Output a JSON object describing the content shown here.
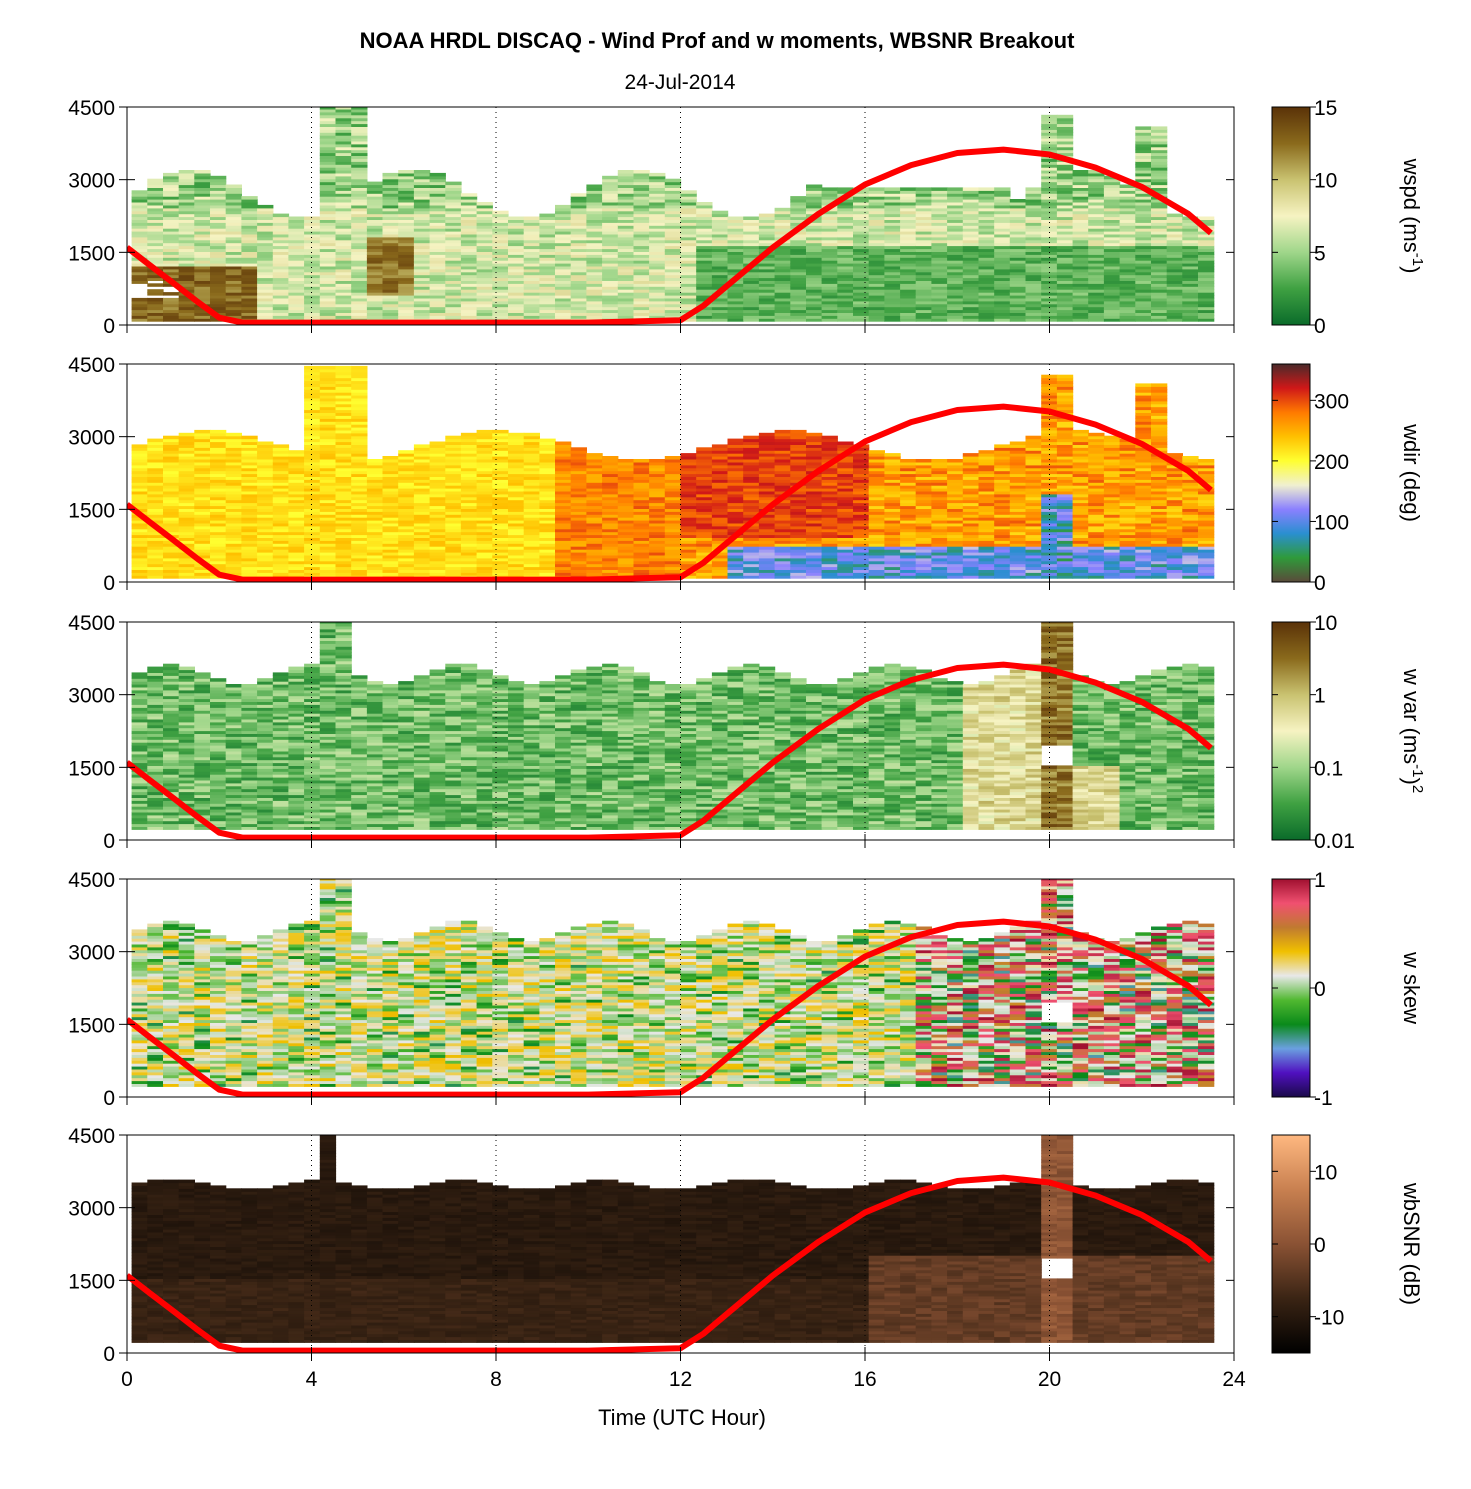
{
  "title": "NOAA HRDL DISCAQ - Wind Prof and w moments, WBSNR Breakout",
  "subtitle": "24-Jul-2014",
  "colors": {
    "overlay_line": "#ff0000",
    "gridline": "#000000"
  },
  "chart_data": {
    "type": "heatmap",
    "xlabel": "Time (UTC Hour)",
    "xlim": [
      0,
      24
    ],
    "xticks": [
      "0",
      "4",
      "8",
      "12",
      "16",
      "20",
      "24"
    ],
    "ylim": [
      0,
      4500
    ],
    "yticks": [
      "0",
      "1500",
      "3000",
      "4500"
    ],
    "overlay_line": {
      "color": "#ff0000",
      "x": [
        0,
        0.5,
        1,
        1.5,
        2,
        2.5,
        3,
        4,
        6,
        8,
        10,
        12,
        12.5,
        13,
        14,
        15,
        16,
        17,
        18,
        19,
        20,
        21,
        22,
        23,
        23.5
      ],
      "y": [
        1600,
        1230,
        870,
        500,
        150,
        50,
        50,
        50,
        50,
        50,
        50,
        100,
        400,
        800,
        1600,
        2300,
        2900,
        3300,
        3550,
        3620,
        3520,
        3250,
        2850,
        2300,
        1900
      ]
    },
    "panels": [
      {
        "id": "wspd",
        "colorbar_label": "wspd (ms",
        "colorbar_label_sup": "-1",
        "colorbar_label_tail": ")",
        "colorbar_ticks": [
          "0",
          "5",
          "10",
          "15"
        ],
        "colorbar_scale": "linear",
        "clim": [
          0,
          15
        ],
        "colormap": [
          "#0a6b2a",
          "#3fa142",
          "#9fd68a",
          "#f6f3c2",
          "#c9c270",
          "#8a6a1c",
          "#5a3208"
        ]
      },
      {
        "id": "wdir",
        "colorbar_label": "wdir (deg)",
        "colorbar_ticks": [
          "0",
          "100",
          "200",
          "300"
        ],
        "colorbar_scale": "linear",
        "clim": [
          0,
          360
        ],
        "colormap": [
          "#5a4a3a",
          "#2f9a3a",
          "#2a8fd0",
          "#8a80ff",
          "#f0f0d0",
          "#ffff30",
          "#ffc000",
          "#ff7a00",
          "#d01818",
          "#4a2a2a"
        ]
      },
      {
        "id": "wvar",
        "colorbar_label": "w var (ms",
        "colorbar_label_sup": "-1",
        "colorbar_label_tail": ")",
        "colorbar_label_sup2": "2",
        "colorbar_ticks": [
          "0.01",
          "0.1",
          "1",
          "10"
        ],
        "colorbar_scale": "log",
        "clim": [
          0.01,
          10
        ],
        "colormap": [
          "#0a6b2a",
          "#3fa142",
          "#9fd68a",
          "#f6f3c2",
          "#c9c270",
          "#8a6a1c",
          "#5a3208"
        ]
      },
      {
        "id": "wskew",
        "colorbar_label": "w skew",
        "colorbar_ticks": [
          "-1",
          "0",
          "1"
        ],
        "colorbar_scale": "linear",
        "clim": [
          -1,
          1
        ],
        "colormap": [
          "#1a0a4a",
          "#5010c0",
          "#6aa0e0",
          "#0a8a1a",
          "#50b830",
          "#e8e8e8",
          "#f0c000",
          "#c07a30",
          "#f05070",
          "#a01030"
        ]
      },
      {
        "id": "wbsnr",
        "colorbar_label": "wbSNR (dB)",
        "colorbar_ticks": [
          "-10",
          "0",
          "10"
        ],
        "colorbar_scale": "linear",
        "clim": [
          -15,
          15
        ],
        "colormap": [
          "#000000",
          "#3a2414",
          "#8a5234",
          "#c88050",
          "#ffb880"
        ]
      }
    ]
  }
}
